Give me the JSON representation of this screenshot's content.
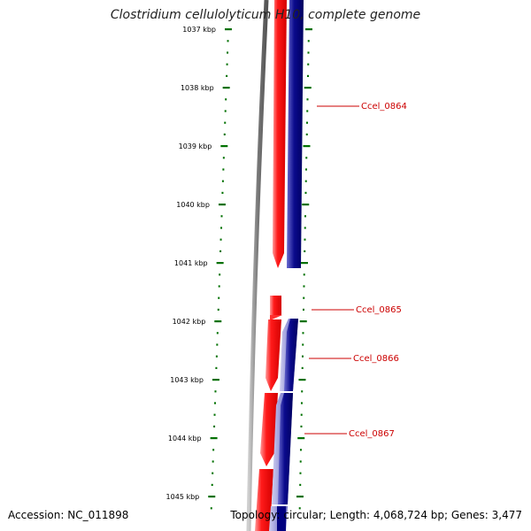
{
  "title": "Clostridium cellulolyticum H10, complete genome",
  "footer": {
    "accession": "Accession: NC_011898",
    "topology": "Topology: circular; Length: 4,068,724 bp; Genes: 3,477"
  },
  "scale_labels": [
    "1037 kbp",
    "1038 kbp",
    "1039 kbp",
    "1040 kbp",
    "1041 kbp",
    "1042 kbp",
    "1043 kbp",
    "1044 kbp",
    "1045 kbp"
  ],
  "genes": [
    {
      "name": "Ccel_0864"
    },
    {
      "name": "Ccel_0865"
    },
    {
      "name": "Ccel_0866"
    },
    {
      "name": "Ccel_0867"
    }
  ],
  "colors": {
    "forward_strand": "#ff0000",
    "reverse_strand": "#000080",
    "reverse_strand_light": "#8080c8",
    "backbone": "#808080",
    "ticks": "#007000",
    "gene_label": "#cc0000",
    "text": "#000000"
  }
}
